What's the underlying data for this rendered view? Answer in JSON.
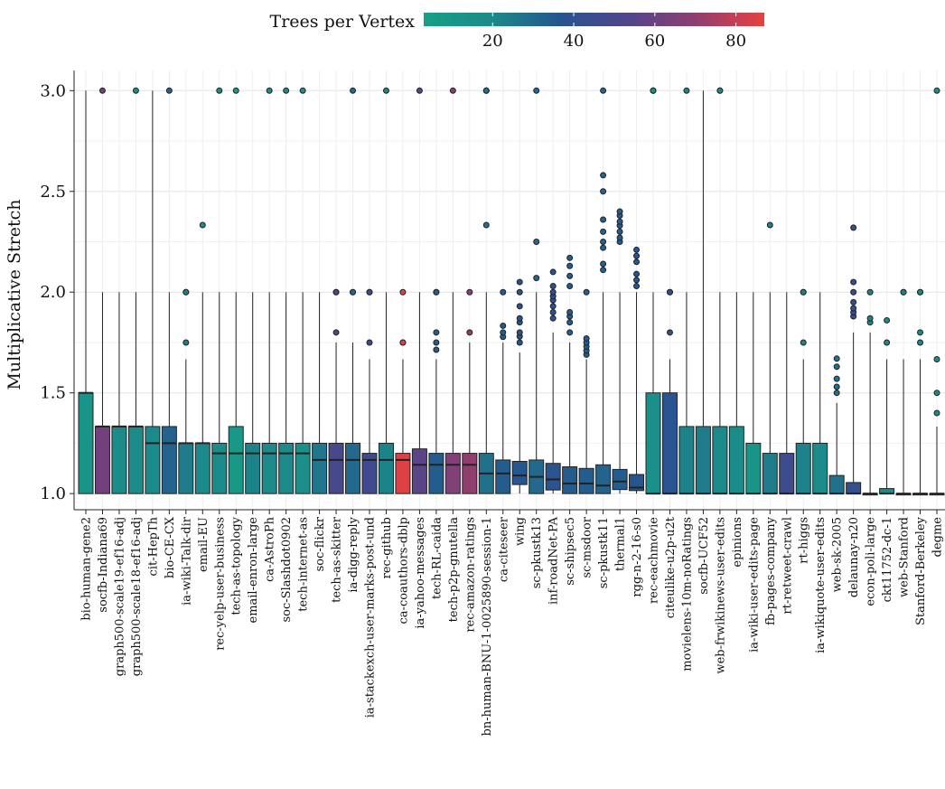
{
  "chart_data": {
    "type": "box",
    "ylabel": "Multiplicative Stretch",
    "ylim": [
      0.92,
      3.1
    ],
    "yticks": [
      1.0,
      1.5,
      2.0,
      2.5,
      3.0
    ],
    "ytick_labels": [
      "1.0",
      "1.5",
      "2.0",
      "2.5",
      "3.0"
    ],
    "grid": true,
    "colorbar": {
      "title": "Trees per Vertex",
      "range": [
        3,
        87
      ],
      "ticks": [
        20,
        40,
        60,
        80
      ],
      "tick_labels": [
        "20",
        "40",
        "60",
        "80"
      ],
      "placement": "top",
      "colors": [
        "#16a085",
        "#1c8a8a",
        "#26548f",
        "#51458c",
        "#913e6f",
        "#e8413f"
      ]
    },
    "boxes": [
      {
        "name": "bio-human-gene2",
        "q1": 1.0,
        "median": 1.5,
        "q3": 1.5,
        "whisker_low": 1.0,
        "whisker_high": 3.0,
        "outliers": [],
        "trees_per_vertex": 12
      },
      {
        "name": "socfb-Indiana69",
        "q1": 1.0,
        "median": 1.333,
        "q3": 1.333,
        "whisker_low": 1.0,
        "whisker_high": 2.0,
        "outliers": [
          3.0
        ],
        "trees_per_vertex": 62
      },
      {
        "name": "graph500-scale19-ef16-adj",
        "q1": 1.0,
        "median": 1.333,
        "q3": 1.333,
        "whisker_low": 1.0,
        "whisker_high": 2.0,
        "outliers": [],
        "trees_per_vertex": 18
      },
      {
        "name": "graph500-scale18-ef16-adj",
        "q1": 1.0,
        "median": 1.333,
        "q3": 1.333,
        "whisker_low": 1.0,
        "whisker_high": 2.0,
        "outliers": [
          3.0
        ],
        "trees_per_vertex": 18
      },
      {
        "name": "cit-HepTh",
        "q1": 1.0,
        "median": 1.25,
        "q3": 1.333,
        "whisker_low": 1.0,
        "whisker_high": 3.0,
        "outliers": [],
        "trees_per_vertex": 20
      },
      {
        "name": "bio-CE-CX",
        "q1": 1.0,
        "median": 1.25,
        "q3": 1.333,
        "whisker_low": 1.0,
        "whisker_high": 2.0,
        "outliers": [
          3.0
        ],
        "trees_per_vertex": 32
      },
      {
        "name": "ia-wiki-Talk-dir",
        "q1": 1.0,
        "median": 1.25,
        "q3": 1.25,
        "whisker_low": 1.0,
        "whisker_high": 1.667,
        "outliers": [
          1.75,
          2.0,
          2.0
        ],
        "trees_per_vertex": 24
      },
      {
        "name": "email-EU",
        "q1": 1.0,
        "median": 1.25,
        "q3": 1.25,
        "whisker_low": 1.0,
        "whisker_high": 2.0,
        "outliers": [
          2.333
        ],
        "trees_per_vertex": 20
      },
      {
        "name": "rec-yelp-user-business",
        "q1": 1.0,
        "median": 1.2,
        "q3": 1.25,
        "whisker_low": 1.0,
        "whisker_high": 2.0,
        "outliers": [
          3.0
        ],
        "trees_per_vertex": 18
      },
      {
        "name": "tech-as-topology",
        "q1": 1.0,
        "median": 1.2,
        "q3": 1.333,
        "whisker_low": 1.0,
        "whisker_high": 2.0,
        "outliers": [
          3.0
        ],
        "trees_per_vertex": 10
      },
      {
        "name": "email-enron-large",
        "q1": 1.0,
        "median": 1.2,
        "q3": 1.25,
        "whisker_low": 1.0,
        "whisker_high": 2.0,
        "outliers": [],
        "trees_per_vertex": 22
      },
      {
        "name": "ca-AstroPh",
        "q1": 1.0,
        "median": 1.2,
        "q3": 1.25,
        "whisker_low": 1.0,
        "whisker_high": 2.0,
        "outliers": [
          3.0
        ],
        "trees_per_vertex": 20
      },
      {
        "name": "soc-Slashdot0902",
        "q1": 1.0,
        "median": 1.2,
        "q3": 1.25,
        "whisker_low": 1.0,
        "whisker_high": 2.0,
        "outliers": [
          3.0
        ],
        "trees_per_vertex": 20
      },
      {
        "name": "tech-internet-as",
        "q1": 1.0,
        "median": 1.2,
        "q3": 1.25,
        "whisker_low": 1.0,
        "whisker_high": 2.0,
        "outliers": [
          3.0
        ],
        "trees_per_vertex": 16
      },
      {
        "name": "soc-flickr",
        "q1": 1.0,
        "median": 1.167,
        "q3": 1.25,
        "whisker_low": 1.0,
        "whisker_high": 2.0,
        "outliers": [],
        "trees_per_vertex": 26
      },
      {
        "name": "tech-as-skitter",
        "q1": 1.0,
        "median": 1.167,
        "q3": 1.25,
        "whisker_low": 1.0,
        "whisker_high": 1.75,
        "outliers": [
          1.8,
          2.0,
          2.0
        ],
        "trees_per_vertex": 50
      },
      {
        "name": "ia-digg-reply",
        "q1": 1.0,
        "median": 1.167,
        "q3": 1.25,
        "whisker_low": 1.0,
        "whisker_high": 1.75,
        "outliers": [
          2.0,
          2.0,
          3.0
        ],
        "trees_per_vertex": 30
      },
      {
        "name": "ia-stackexch-user-marks-post-und",
        "q1": 1.0,
        "median": 1.167,
        "q3": 1.2,
        "whisker_low": 1.0,
        "whisker_high": 1.667,
        "outliers": [
          1.75,
          2.0,
          2.0
        ],
        "trees_per_vertex": 46
      },
      {
        "name": "rec-github",
        "q1": 1.0,
        "median": 1.167,
        "q3": 1.25,
        "whisker_low": 1.0,
        "whisker_high": 2.0,
        "outliers": [
          3.0
        ],
        "trees_per_vertex": 22
      },
      {
        "name": "ca-coauthors-dblp",
        "q1": 1.0,
        "median": 1.167,
        "q3": 1.2,
        "whisker_low": 1.0,
        "whisker_high": 1.667,
        "outliers": [
          1.75,
          1.75,
          2.0
        ],
        "trees_per_vertex": 85
      },
      {
        "name": "ia-yahoo-messages",
        "q1": 1.0,
        "median": 1.143,
        "q3": 1.222,
        "whisker_low": 1.0,
        "whisker_high": 2.0,
        "outliers": [
          3.0
        ],
        "trees_per_vertex": 56
      },
      {
        "name": "tech-RL-caida",
        "q1": 1.0,
        "median": 1.143,
        "q3": 1.2,
        "whisker_low": 1.0,
        "whisker_high": 1.667,
        "outliers": [
          1.714,
          1.75,
          1.8,
          2.0,
          2.0
        ],
        "trees_per_vertex": 34
      },
      {
        "name": "tech-p2p-gnutella",
        "q1": 1.0,
        "median": 1.143,
        "q3": 1.2,
        "whisker_low": 1.0,
        "whisker_high": 2.0,
        "outliers": [
          3.0
        ],
        "trees_per_vertex": 66
      },
      {
        "name": "rec-amazon-ratings",
        "q1": 1.0,
        "median": 1.143,
        "q3": 1.2,
        "whisker_low": 1.0,
        "whisker_high": 1.75,
        "outliers": [
          1.8,
          2.0
        ],
        "trees_per_vertex": 70
      },
      {
        "name": "bn-human-BNU-1-0025890-session-1",
        "q1": 1.0,
        "median": 1.1,
        "q3": 1.2,
        "whisker_low": 1.0,
        "whisker_high": 2.0,
        "outliers": [
          2.333,
          3.0,
          3.0,
          3.0
        ],
        "trees_per_vertex": 28
      },
      {
        "name": "ca-citeseer",
        "q1": 1.0,
        "median": 1.1,
        "q3": 1.167,
        "whisker_low": 1.0,
        "whisker_high": 1.75,
        "outliers": [
          1.778,
          1.8,
          1.833,
          2.0
        ],
        "trees_per_vertex": 34
      },
      {
        "name": "wing",
        "q1": 1.045,
        "median": 1.09,
        "q3": 1.16,
        "whisker_low": 1.0,
        "whisker_high": 1.7,
        "outliers": [
          1.75,
          1.78,
          1.8,
          1.85,
          1.87,
          1.93,
          2.0,
          2.05
        ],
        "trees_per_vertex": 36
      },
      {
        "name": "sc-pkustk13",
        "q1": 1.0,
        "median": 1.083,
        "q3": 1.167,
        "whisker_low": 1.0,
        "whisker_high": 2.0,
        "outliers": [
          2.07,
          2.25,
          3.0
        ],
        "trees_per_vertex": 30
      },
      {
        "name": "inf-roadNet-PA",
        "q1": 1.018,
        "median": 1.07,
        "q3": 1.15,
        "whisker_low": 1.0,
        "whisker_high": 1.8,
        "outliers": [
          1.87,
          1.9,
          1.93,
          1.96,
          1.98,
          2.0,
          2.03,
          2.1
        ],
        "trees_per_vertex": 38
      },
      {
        "name": "sc-shipsec5",
        "q1": 1.0,
        "median": 1.05,
        "q3": 1.133,
        "whisker_low": 1.0,
        "whisker_high": 1.75,
        "outliers": [
          1.8,
          1.85,
          1.88,
          1.9,
          2.03,
          2.08,
          2.13,
          2.17
        ],
        "trees_per_vertex": 34
      },
      {
        "name": "sc-msdoor",
        "q1": 1.0,
        "median": 1.05,
        "q3": 1.125,
        "whisker_low": 1.0,
        "whisker_high": 1.667,
        "outliers": [
          1.69,
          1.71,
          1.73,
          1.75,
          1.77,
          2.0
        ],
        "trees_per_vertex": 34
      },
      {
        "name": "sc-pkustk11",
        "q1": 1.0,
        "median": 1.04,
        "q3": 1.143,
        "whisker_low": 1.0,
        "whisker_high": 2.0,
        "outliers": [
          2.11,
          2.14,
          2.22,
          2.25,
          2.3,
          2.36,
          2.5,
          2.58,
          3.0
        ],
        "trees_per_vertex": 32
      },
      {
        "name": "thermal1",
        "q1": 1.02,
        "median": 1.06,
        "q3": 1.12,
        "whisker_low": 1.0,
        "whisker_high": 2.0,
        "outliers": [
          2.25,
          2.27,
          2.3,
          2.33,
          2.35,
          2.38,
          2.4
        ],
        "trees_per_vertex": 34
      },
      {
        "name": "rgg-n-2-16-s0",
        "q1": 1.015,
        "median": 1.03,
        "q3": 1.095,
        "whisker_low": 1.0,
        "whisker_high": 2.0,
        "outliers": [
          2.03,
          2.06,
          2.09,
          2.15,
          2.18,
          2.21
        ],
        "trees_per_vertex": 36
      },
      {
        "name": "rec-eachmovie",
        "q1": 1.0,
        "median": 1.0,
        "q3": 1.5,
        "whisker_low": 1.0,
        "whisker_high": 2.0,
        "outliers": [
          3.0,
          3.0,
          3.0
        ],
        "trees_per_vertex": 16
      },
      {
        "name": "citeulike-u2p-u2t",
        "q1": 1.0,
        "median": 1.0,
        "q3": 1.5,
        "whisker_low": 1.0,
        "whisker_high": 1.667,
        "outliers": [
          1.8,
          2.0,
          2.0
        ],
        "trees_per_vertex": 38
      },
      {
        "name": "movielens-10m-noRatings",
        "q1": 1.0,
        "median": 1.0,
        "q3": 1.333,
        "whisker_low": 1.0,
        "whisker_high": 2.0,
        "outliers": [
          3.0
        ],
        "trees_per_vertex": 22
      },
      {
        "name": "socfb-UCF52",
        "q1": 1.0,
        "median": 1.0,
        "q3": 1.333,
        "whisker_low": 1.0,
        "whisker_high": 3.0,
        "outliers": [],
        "trees_per_vertex": 24
      },
      {
        "name": "web-frwikinews-user-edits",
        "q1": 1.0,
        "median": 1.0,
        "q3": 1.333,
        "whisker_low": 1.0,
        "whisker_high": 2.0,
        "outliers": [
          3.0,
          3.0
        ],
        "trees_per_vertex": 20
      },
      {
        "name": "epinions",
        "q1": 1.0,
        "median": 1.0,
        "q3": 1.333,
        "whisker_low": 1.0,
        "whisker_high": 2.0,
        "outliers": [],
        "trees_per_vertex": 18
      },
      {
        "name": "ia-wiki-user-edits-page",
        "q1": 1.0,
        "median": 1.0,
        "q3": 1.25,
        "whisker_low": 1.0,
        "whisker_high": 2.0,
        "outliers": [],
        "trees_per_vertex": 12
      },
      {
        "name": "fb-pages-company",
        "q1": 1.0,
        "median": 1.0,
        "q3": 1.2,
        "whisker_low": 1.0,
        "whisker_high": 2.0,
        "outliers": [
          2.333
        ],
        "trees_per_vertex": 24
      },
      {
        "name": "rt-retweet-crawl",
        "q1": 1.0,
        "median": 1.0,
        "q3": 1.2,
        "whisker_low": 1.0,
        "whisker_high": 2.0,
        "outliers": [],
        "trees_per_vertex": 46
      },
      {
        "name": "rt-higgs",
        "q1": 1.0,
        "median": 1.0,
        "q3": 1.25,
        "whisker_low": 1.0,
        "whisker_high": 1.667,
        "outliers": [
          1.75,
          2.0,
          2.0
        ],
        "trees_per_vertex": 22
      },
      {
        "name": "ia-wikiquote-user-edits",
        "q1": 1.0,
        "median": 1.0,
        "q3": 1.25,
        "whisker_low": 1.0,
        "whisker_high": 2.0,
        "outliers": [],
        "trees_per_vertex": 18
      },
      {
        "name": "web-sk-2005",
        "q1": 1.0,
        "median": 1.0,
        "q3": 1.09,
        "whisker_low": 1.0,
        "whisker_high": 1.45,
        "outliers": [
          1.5,
          1.53,
          1.57,
          1.63,
          1.67
        ],
        "trees_per_vertex": 28
      },
      {
        "name": "delaunay-n20",
        "q1": 1.0,
        "median": 1.0,
        "q3": 1.055,
        "whisker_low": 1.0,
        "whisker_high": 1.8,
        "outliers": [
          1.88,
          1.9,
          1.92,
          1.95,
          2.0,
          2.05,
          2.32
        ],
        "trees_per_vertex": 42
      },
      {
        "name": "econ-poli-large",
        "q1": 1.0,
        "median": 1.0,
        "q3": 1.0,
        "whisker_low": 1.0,
        "whisker_high": 1.8,
        "outliers": [
          1.85,
          1.87,
          2.0
        ],
        "trees_per_vertex": 22
      },
      {
        "name": "ckt11752-dc-1",
        "q1": 1.0,
        "median": 1.0,
        "q3": 1.025,
        "whisker_low": 1.0,
        "whisker_high": 1.667,
        "outliers": [
          1.75,
          1.86
        ],
        "trees_per_vertex": 20
      },
      {
        "name": "web-Stanford",
        "q1": 1.0,
        "median": 1.0,
        "q3": 1.0,
        "whisker_low": 1.0,
        "whisker_high": 1.667,
        "outliers": [
          2.0,
          2.0
        ],
        "trees_per_vertex": 22
      },
      {
        "name": "Stanford-Berkeley",
        "q1": 1.0,
        "median": 1.0,
        "q3": 1.0,
        "whisker_low": 1.0,
        "whisker_high": 1.667,
        "outliers": [
          1.75,
          1.8,
          2.0,
          2.0
        ],
        "trees_per_vertex": 20
      },
      {
        "name": "degme",
        "q1": 1.0,
        "median": 1.0,
        "q3": 1.0,
        "whisker_low": 1.0,
        "whisker_high": 1.333,
        "outliers": [
          1.4,
          1.5,
          1.667,
          3.0
        ],
        "trees_per_vertex": 18
      }
    ]
  }
}
